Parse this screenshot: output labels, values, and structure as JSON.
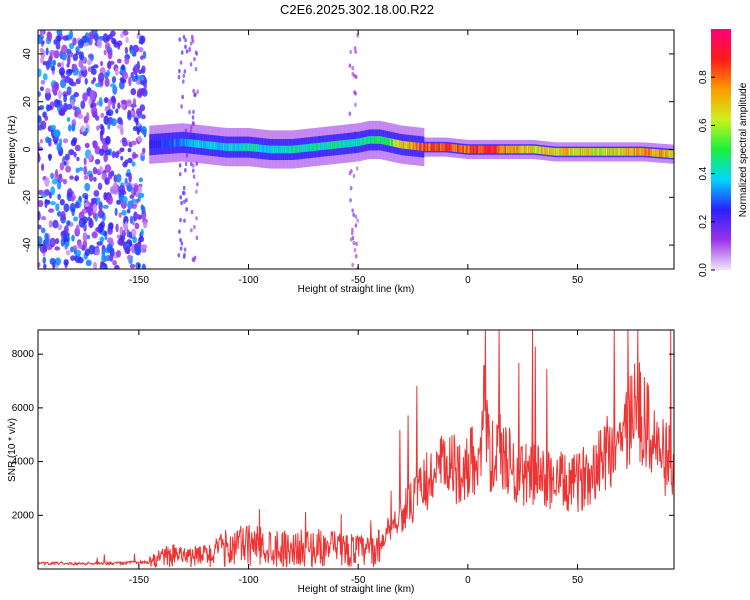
{
  "title": "C2E6.2025.302.18.00.R22",
  "colorbar": {
    "label": "Normalized spectral amplitude",
    "range": [
      0,
      1
    ],
    "ticks": [
      "0.0",
      "0.2",
      "0.4",
      "0.6",
      "0.8"
    ],
    "colors": [
      "#f2e6fa",
      "#9b33e8",
      "#2a1fff",
      "#00d7ff",
      "#19f23c",
      "#cdf21c",
      "#ff9a00",
      "#ff1a1a",
      "#ff007a"
    ]
  },
  "chart_data": [
    {
      "type": "heatmap",
      "xlabel": "Height of straight line (km)",
      "ylabel": "Frequency (Hz)",
      "xlim": [
        -196,
        94
      ],
      "ylim": [
        -50,
        50
      ],
      "xticks": [
        "-150",
        "-100",
        "-50",
        "0",
        "50"
      ],
      "yticks": [
        "-40",
        "-20",
        "0",
        "20",
        "40"
      ],
      "xtick_values": [
        -150,
        -100,
        -50,
        0,
        50
      ],
      "ytick_values": [
        -40,
        -20,
        0,
        20,
        40
      ],
      "trace": {
        "x": [
          -145,
          -130,
          -120,
          -110,
          -100,
          -90,
          -80,
          -70,
          -60,
          -50,
          -45,
          -40,
          -35,
          -30,
          -20,
          -10,
          0,
          10,
          20,
          30,
          40,
          50,
          60,
          70,
          80,
          94
        ],
        "freq": [
          2,
          3,
          2,
          1,
          1,
          0,
          0,
          1,
          2,
          3,
          4,
          4,
          3,
          2,
          1,
          1,
          0,
          0,
          0,
          0,
          -1,
          -1,
          -1,
          -1,
          -1,
          -2
        ],
        "amplitude": [
          0.25,
          0.35,
          0.4,
          0.4,
          0.45,
          0.4,
          0.45,
          0.45,
          0.45,
          0.45,
          0.5,
          0.5,
          0.55,
          0.7,
          0.85,
          0.9,
          0.85,
          0.95,
          0.75,
          0.7,
          0.7,
          0.7,
          0.65,
          0.7,
          0.8,
          0.7
        ]
      },
      "noise_region": [
        -196,
        -147
      ],
      "color": "#7a1fe0"
    },
    {
      "type": "line",
      "xlabel": "Height of straight line (km)",
      "ylabel": "SNR (10 * v/v)",
      "xlim": [
        -196,
        94
      ],
      "ylim": [
        0,
        8900
      ],
      "xticks": [
        "-150",
        "-100",
        "-50",
        "0",
        "50"
      ],
      "yticks": [
        "2000",
        "4000",
        "6000",
        "8000"
      ],
      "xtick_values": [
        -150,
        -100,
        -50,
        0,
        50
      ],
      "ytick_values": [
        2000,
        4000,
        6000,
        8000
      ],
      "color": "#ee3333",
      "series": [
        {
          "x": [
            -196,
            -185,
            -175,
            -165,
            -155,
            -145,
            -140,
            -135,
            -130,
            -125,
            -120,
            -115,
            -110,
            -100,
            -90,
            -80,
            -70,
            -60,
            -50,
            -45,
            -40,
            -38,
            -35,
            -30,
            -25,
            -20,
            -15,
            -10,
            -5,
            0,
            3,
            6,
            8,
            9,
            10,
            12,
            15,
            20,
            25,
            30,
            35,
            40,
            45,
            50,
            55,
            60,
            65,
            70,
            75,
            77,
            80,
            85,
            90,
            94
          ],
          "y": [
            200,
            220,
            200,
            210,
            230,
            260,
            400,
            600,
            400,
            450,
            500,
            600,
            800,
            900,
            850,
            750,
            800,
            750,
            700,
            650,
            800,
            1300,
            1600,
            2100,
            2500,
            3100,
            3600,
            3800,
            3700,
            3800,
            4200,
            4600,
            7600,
            4400,
            4200,
            4100,
            4400,
            3800,
            3500,
            3600,
            3300,
            3400,
            3100,
            3200,
            3600,
            4200,
            4500,
            4800,
            5700,
            6600,
            5500,
            4700,
            4100,
            3800
          ]
        }
      ]
    }
  ]
}
